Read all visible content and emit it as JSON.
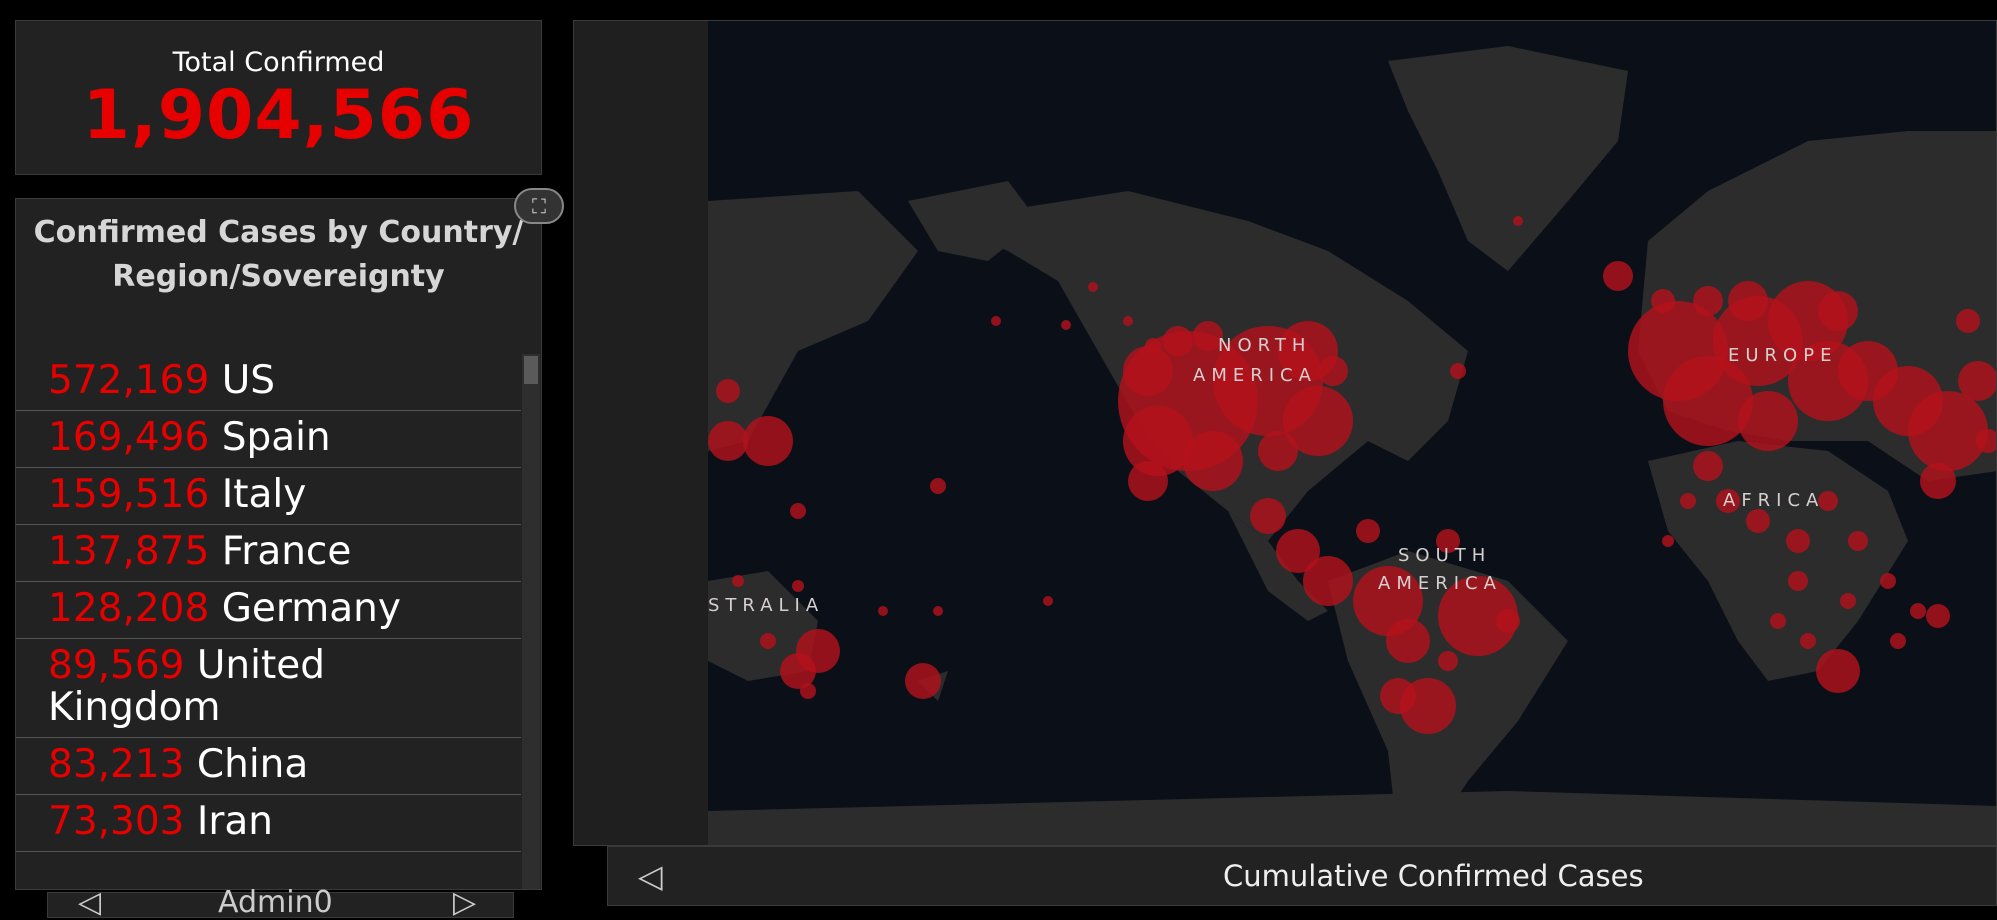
{
  "total": {
    "label": "Total Confirmed",
    "value": "1,904,566"
  },
  "list": {
    "title": "Confirmed Cases by Country/Region/Sovereignty",
    "rows": [
      {
        "count": "572,169",
        "country": "US"
      },
      {
        "count": "169,496",
        "country": "Spain"
      },
      {
        "count": "159,516",
        "country": "Italy"
      },
      {
        "count": "137,875",
        "country": "France"
      },
      {
        "count": "128,208",
        "country": "Germany"
      },
      {
        "count": "89,569",
        "country": "United Kingdom"
      },
      {
        "count": "83,213",
        "country": "China"
      },
      {
        "count": "73,303",
        "country": "Iran"
      }
    ],
    "expand_icon": "⛶"
  },
  "admin_tabs": {
    "prev": "◁",
    "label": "Admin0",
    "next": "▷"
  },
  "map": {
    "labels": {
      "north_america_1": "NORTH",
      "north_america_2": "AMERICA",
      "south_america_1": "SOUTH",
      "south_america_2": "AMERICA",
      "europe": "EUROPE",
      "africa": "AFRICA",
      "australia": "STRALIA"
    },
    "land_color": "#2c2c2c",
    "ocean_color": "#0b1018",
    "bubble_color": "#b5121b"
  },
  "footer": {
    "prev_icon": "◁",
    "title": "Cumulative Confirmed Cases"
  }
}
